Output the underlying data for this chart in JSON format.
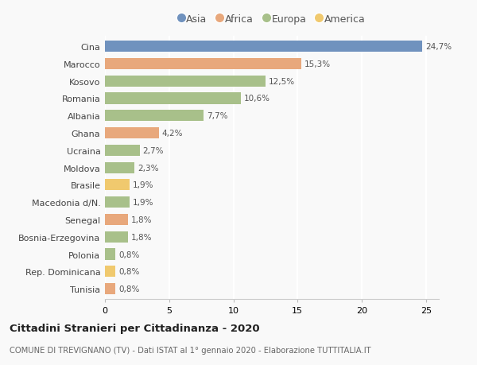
{
  "countries": [
    "Cina",
    "Marocco",
    "Kosovo",
    "Romania",
    "Albania",
    "Ghana",
    "Ucraina",
    "Moldova",
    "Brasile",
    "Macedonia d/N.",
    "Senegal",
    "Bosnia-Erzegovina",
    "Polonia",
    "Rep. Dominicana",
    "Tunisia"
  ],
  "values": [
    24.7,
    15.3,
    12.5,
    10.6,
    7.7,
    4.2,
    2.7,
    2.3,
    1.9,
    1.9,
    1.8,
    1.8,
    0.8,
    0.8,
    0.8
  ],
  "labels": [
    "24,7%",
    "15,3%",
    "12,5%",
    "10,6%",
    "7,7%",
    "4,2%",
    "2,7%",
    "2,3%",
    "1,9%",
    "1,9%",
    "1,8%",
    "1,8%",
    "0,8%",
    "0,8%",
    "0,8%"
  ],
  "continents": [
    "Asia",
    "Africa",
    "Europa",
    "Europa",
    "Europa",
    "Africa",
    "Europa",
    "Europa",
    "America",
    "Europa",
    "Africa",
    "Europa",
    "Europa",
    "America",
    "Africa"
  ],
  "continent_colors": {
    "Asia": "#7092be",
    "Africa": "#e8a87c",
    "Europa": "#a8c08a",
    "America": "#f0c96e"
  },
  "legend_order": [
    "Asia",
    "Africa",
    "Europa",
    "America"
  ],
  "title": "Cittadini Stranieri per Cittadinanza - 2020",
  "subtitle": "COMUNE DI TREVIGNANO (TV) - Dati ISTAT al 1° gennaio 2020 - Elaborazione TUTTITALIA.IT",
  "xlim": [
    0,
    26
  ],
  "bg_color": "#f9f9f9",
  "grid_color": "#ffffff",
  "bar_height": 0.65
}
